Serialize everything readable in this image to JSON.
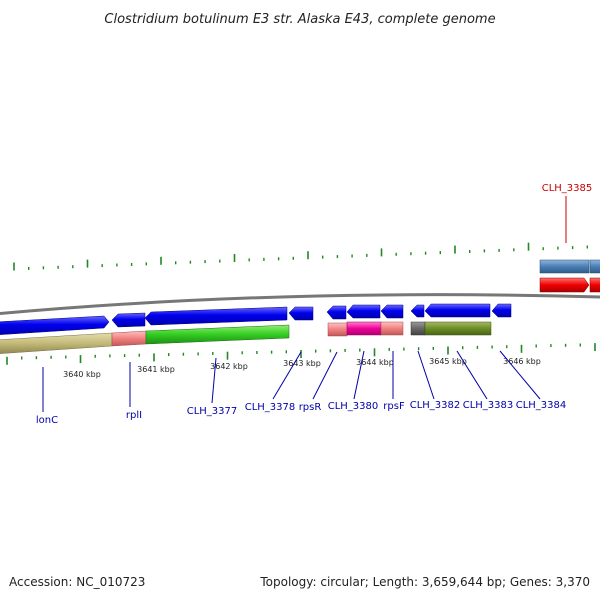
{
  "title": "Clostridium botulinum E3 str. Alaska E43, complete genome",
  "footer": {
    "accession": "Accession: NC_010723",
    "summary": "Topology: circular; Length: 3,659,644 bp; Genes: 3,370"
  },
  "kbp_labels": [
    "3640 kbp",
    "3641 kbp",
    "3642 kbp",
    "3643 kbp",
    "3644 kbp",
    "3645 kbp",
    "3646 kbp"
  ],
  "gene_labels": [
    {
      "text": "lonC",
      "color": "#0000aa"
    },
    {
      "text": "rplI",
      "color": "#0000aa"
    },
    {
      "text": "CLH_3377",
      "color": "#0000aa"
    },
    {
      "text": "CLH_3378",
      "color": "#0000aa"
    },
    {
      "text": "rpsR",
      "color": "#0000aa"
    },
    {
      "text": "CLH_3380",
      "color": "#0000aa"
    },
    {
      "text": "rpsF",
      "color": "#0000aa"
    },
    {
      "text": "CLH_3382",
      "color": "#0000aa"
    },
    {
      "text": "CLH_3383",
      "color": "#0000aa"
    },
    {
      "text": "CLH_3384",
      "color": "#0000aa"
    },
    {
      "text": "CLH_3385",
      "color": "#cc0000"
    }
  ],
  "colors": {
    "cds": "#0000ee",
    "backbone": "#777777",
    "tick": "#228822",
    "gene_label": "#0000aa",
    "highlight_label": "#cc0000",
    "rrna_blue": "#4a7fb5",
    "rrna_red": "#ee0000"
  }
}
